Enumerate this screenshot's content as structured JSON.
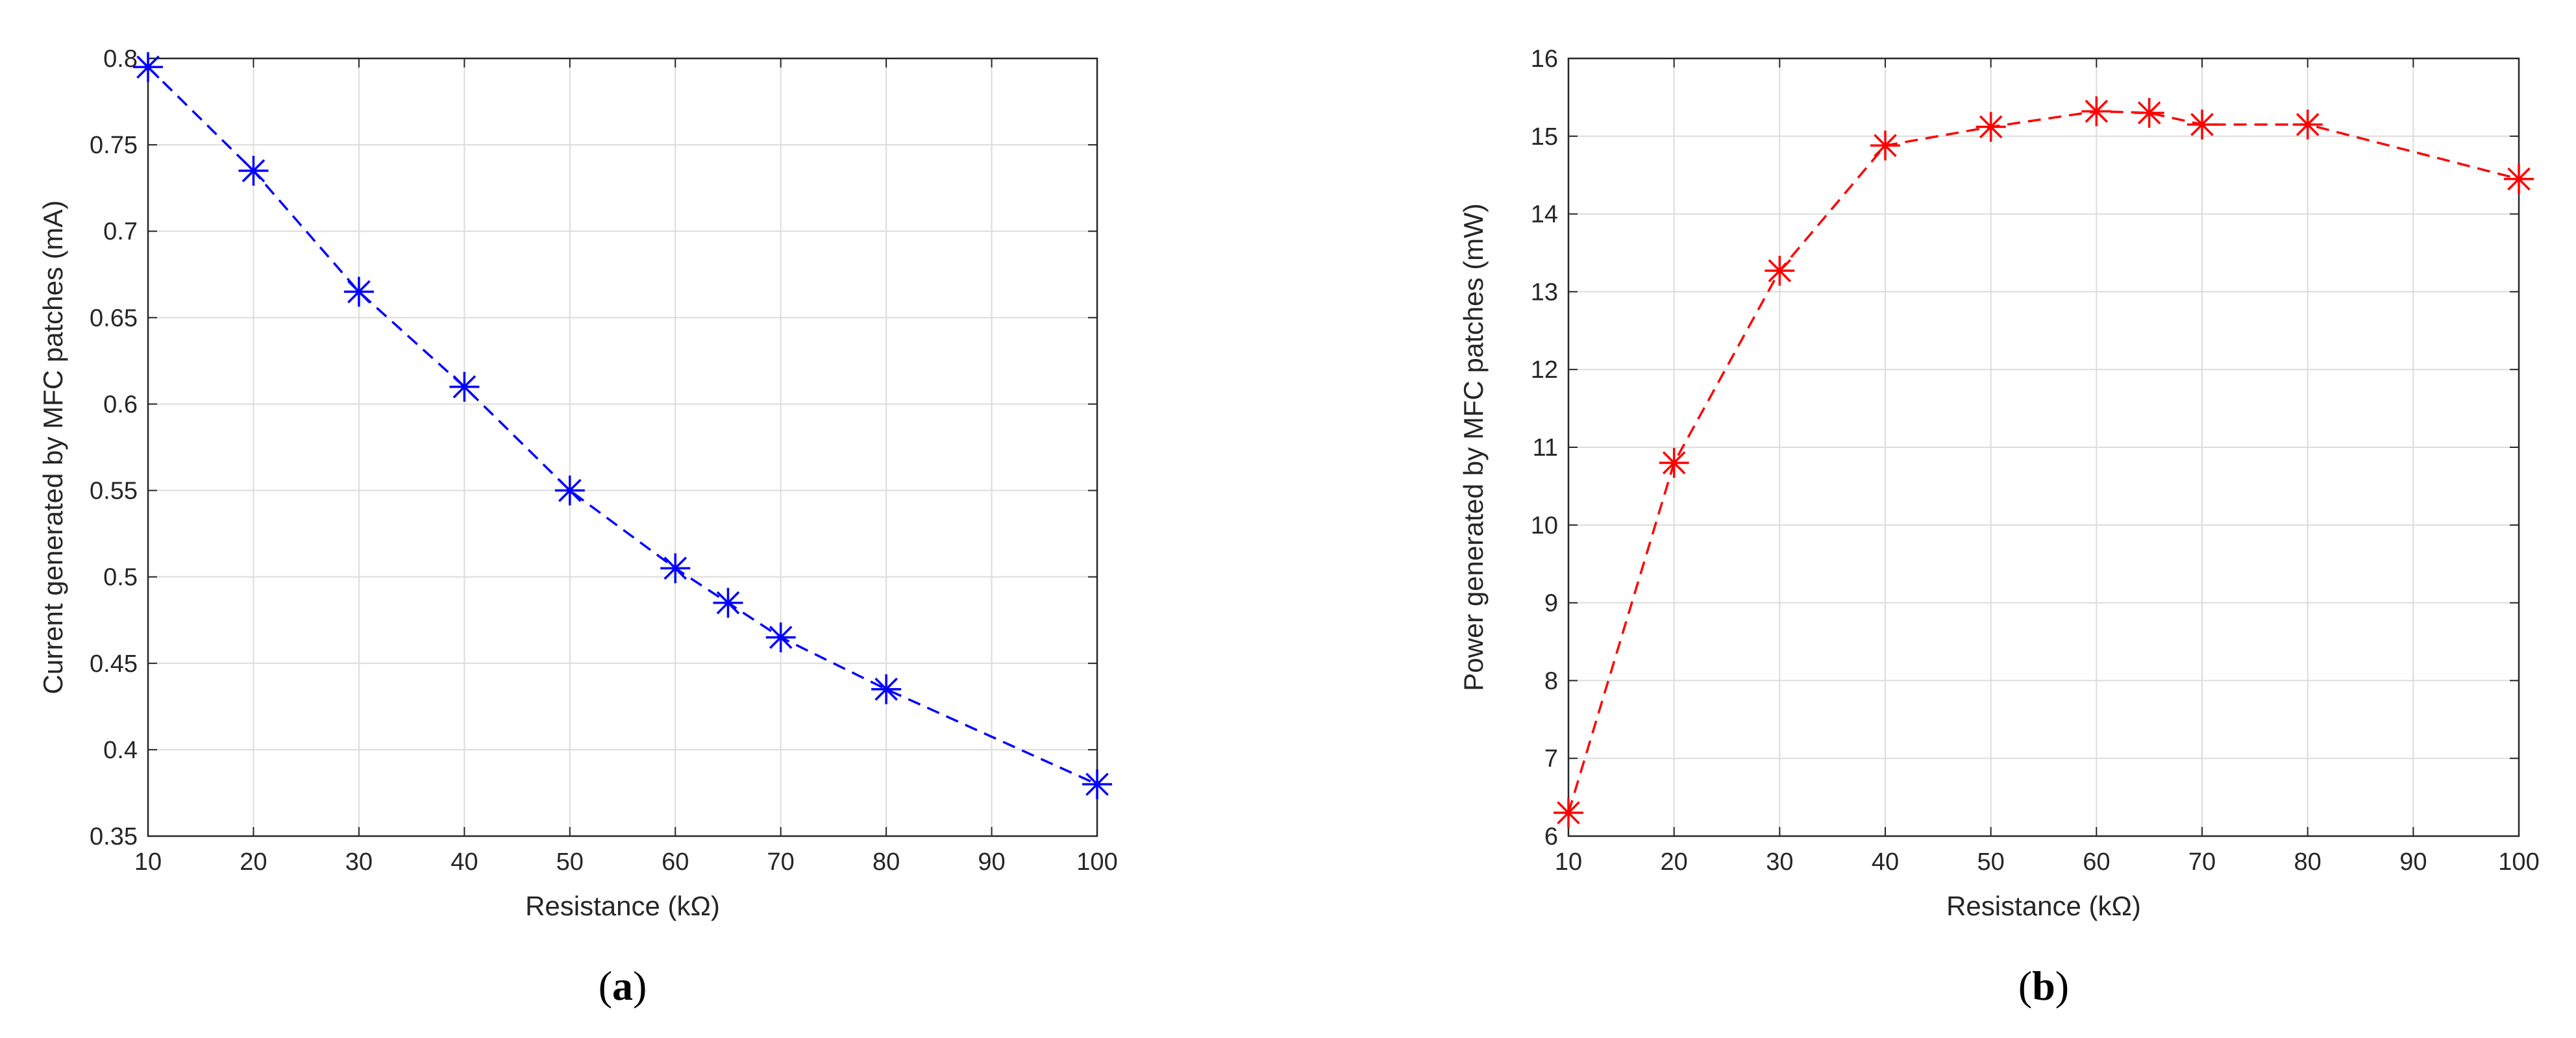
{
  "chart_data": [
    {
      "type": "line",
      "caption": "a",
      "xlabel": "Resistance (kΩ)",
      "ylabel": "Current generated by MFC patches (mA)",
      "xlim": [
        10,
        100
      ],
      "ylim": [
        0.35,
        0.8
      ],
      "xticks": [
        "10",
        "20",
        "30",
        "40",
        "50",
        "60",
        "70",
        "80",
        "90",
        "100"
      ],
      "yticks": [
        "0.35",
        "0.4",
        "0.45",
        "0.5",
        "0.55",
        "0.6",
        "0.65",
        "0.7",
        "0.75",
        "0.8"
      ],
      "grid": true,
      "series": [
        {
          "x": [
            10,
            20,
            30,
            40,
            50,
            60,
            65,
            70,
            80,
            100
          ],
          "y": [
            0.795,
            0.735,
            0.665,
            0.61,
            0.55,
            0.505,
            0.485,
            0.465,
            0.435,
            0.38
          ],
          "color": "#0000ff",
          "line_style": "dashed",
          "marker": "asterisk"
        }
      ]
    },
    {
      "type": "line",
      "caption": "b",
      "xlabel": "Resistance (kΩ)",
      "ylabel": "Power generated by MFC patches (mW)",
      "xlim": [
        10,
        100
      ],
      "ylim": [
        6,
        16
      ],
      "xticks": [
        "10",
        "20",
        "30",
        "40",
        "50",
        "60",
        "70",
        "80",
        "90",
        "100"
      ],
      "yticks": [
        "6",
        "7",
        "8",
        "9",
        "10",
        "11",
        "12",
        "13",
        "14",
        "15",
        "16"
      ],
      "grid": true,
      "series": [
        {
          "x": [
            10,
            20,
            30,
            40,
            50,
            60,
            65,
            70,
            80,
            100
          ],
          "y": [
            6.3,
            10.8,
            13.27,
            14.88,
            15.12,
            15.32,
            15.3,
            15.15,
            15.15,
            14.45
          ],
          "color": "#ff0000",
          "line_style": "dashed",
          "marker": "asterisk"
        }
      ]
    }
  ]
}
